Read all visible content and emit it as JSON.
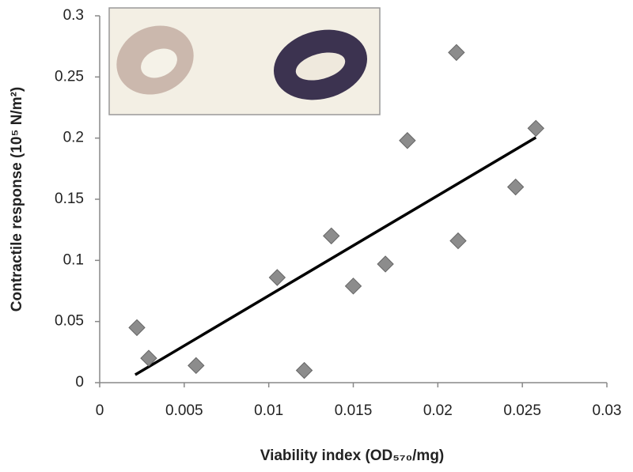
{
  "chart_data": {
    "type": "scatter",
    "x_label": "Viability index (OD₅₇₀/mg)",
    "y_label": "Contractile response (10⁵ N/m²)",
    "xlim": [
      0,
      0.03
    ],
    "xticks": [
      0,
      0.005,
      0.01,
      0.015,
      0.02,
      0.025,
      0.03
    ],
    "ylim": [
      0,
      0.3
    ],
    "yticks": [
      0,
      0.05,
      0.1,
      0.15,
      0.2,
      0.25,
      0.3
    ],
    "grid": false,
    "series": [
      {
        "color": "#8c8c8c",
        "marker": "diamond",
        "x": [
          0.0022,
          0.0029,
          0.0057,
          0.0105,
          0.0121,
          0.0137,
          0.015,
          0.0169,
          0.0182,
          0.0211,
          0.0212,
          0.0246,
          0.0258
        ],
        "values": [
          0.045,
          0.02,
          0.014,
          0.086,
          0.01,
          0.12,
          0.079,
          0.097,
          0.198,
          0.27,
          0.116,
          0.16,
          0.208
        ]
      }
    ],
    "trendline": {
      "color": "#000000",
      "x": [
        0.0021,
        0.0258
      ],
      "values": [
        0.0065,
        0.2005
      ]
    }
  }
}
